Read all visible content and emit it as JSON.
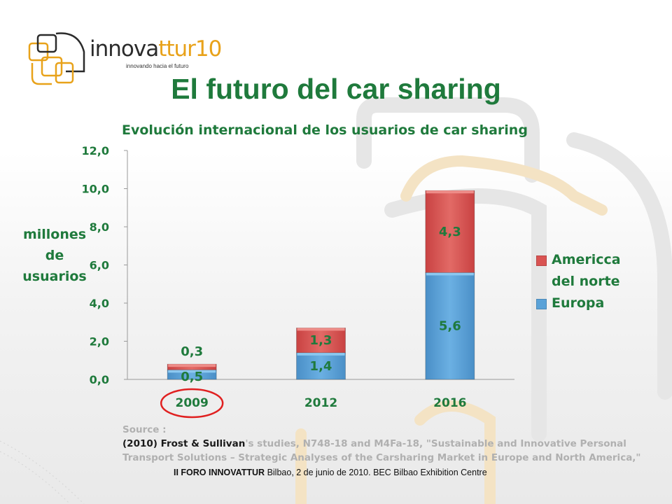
{
  "logo": {
    "word_main": "innova",
    "word_accent": "ttur10",
    "tagline": "innovando hacia el futuro"
  },
  "title": "El futuro del car sharing",
  "chart_data": {
    "type": "bar",
    "stacked": true,
    "title": "Evolución internacional de los usuarios de car sharing",
    "ylabel_lines": [
      "millones",
      "de",
      "usuarios"
    ],
    "xlabel": "",
    "categories": [
      "2009",
      "2012",
      "2016"
    ],
    "ylim": [
      0,
      12
    ],
    "yticks": [
      "0,0",
      "2,0",
      "4,0",
      "6,0",
      "8,0",
      "10,0",
      "12,0"
    ],
    "grid": false,
    "legend_position": "right",
    "series": [
      {
        "name": "Europa",
        "values": [
          0.5,
          1.4,
          5.6
        ],
        "labels": [
          "0,5",
          "1,4",
          "5,6"
        ],
        "color": "#5aa2d8"
      },
      {
        "name": "Americca del norte",
        "values": [
          0.3,
          1.3,
          4.3
        ],
        "labels": [
          "0,3",
          "1,3",
          "4,3"
        ],
        "color": "#d95352"
      }
    ],
    "annotations": [
      {
        "type": "circle",
        "color": "#e02020",
        "target_category": "2009"
      }
    ]
  },
  "legend": [
    {
      "name": "Americca",
      "name2": "del norte",
      "color": "#d95352"
    },
    {
      "name": "Europa",
      "color": "#5aa2d8"
    }
  ],
  "source": {
    "label": "Source :",
    "lead": "(2010) Frost & Sullivan",
    "rest": "'s studies, N748-18 and M4Fa-18, \"Sustainable and Innovative Personal Transport Solutions – Strategic Analyses of the Carsharing Market in Europe and North America,\""
  },
  "footer": {
    "bold": "II FORO INNOVATTUR",
    "text": " Bilbao, 2 de junio de 2010. BEC Bilbao Exhibition Centre"
  }
}
